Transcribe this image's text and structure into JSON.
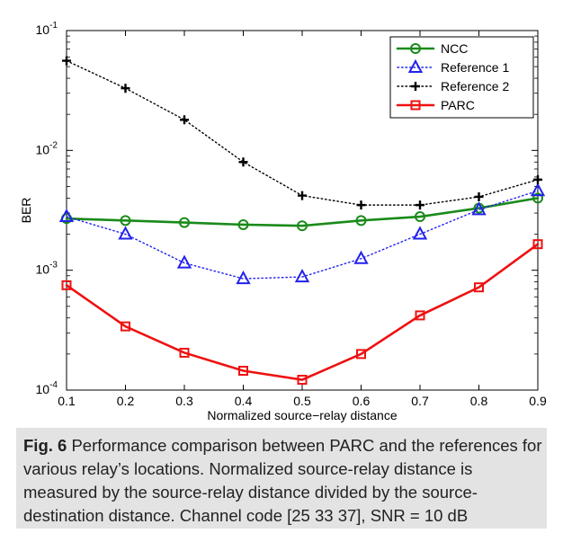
{
  "chart_data": {
    "type": "line",
    "ylabel": "BER",
    "xlabel": "Normalized source−relay distance",
    "x": [
      0.1,
      0.2,
      0.3,
      0.4,
      0.5,
      0.6,
      0.7,
      0.8,
      0.9
    ],
    "xlim": [
      0.1,
      0.9
    ],
    "ylim": [
      0.0001,
      0.1
    ],
    "yscale": "log",
    "x_tick_labels": [
      "0.1",
      "0.2",
      "0.3",
      "0.4",
      "0.5",
      "0.6",
      "0.7",
      "0.8",
      "0.9"
    ],
    "y_tick_labels": [
      {
        "base": "10",
        "exp": "-1"
      },
      {
        "base": "10",
        "exp": "-2"
      },
      {
        "base": "10",
        "exp": "-3"
      },
      {
        "base": "10",
        "exp": "-4"
      }
    ],
    "grid": false,
    "legend_position": "top-right",
    "series": [
      {
        "name": "NCC",
        "color": "#1a8a1a",
        "marker": "circle",
        "line_style": "solid",
        "values": [
          0.0027,
          0.0026,
          0.0025,
          0.0024,
          0.00235,
          0.0026,
          0.0028,
          0.0033,
          0.004
        ]
      },
      {
        "name": "Reference 1",
        "color": "#2222ee",
        "marker": "triangle",
        "line_style": "dotted",
        "values": [
          0.0028,
          0.002,
          0.00115,
          0.00085,
          0.00088,
          0.00125,
          0.002,
          0.0032,
          0.0046
        ]
      },
      {
        "name": "Reference 2",
        "color": "#000000",
        "marker": "plus",
        "line_style": "dotted",
        "values": [
          0.056,
          0.033,
          0.018,
          0.008,
          0.0042,
          0.0035,
          0.0035,
          0.0041,
          0.0057
        ]
      },
      {
        "name": "PARC",
        "color": "#ee1111",
        "marker": "square",
        "line_style": "solid",
        "values": [
          0.00075,
          0.00034,
          0.000205,
          0.000145,
          0.000122,
          0.0002,
          0.00042,
          0.00072,
          0.00165
        ]
      }
    ]
  },
  "caption": {
    "label": "Fig. 6",
    "text": "Performance comparison between PARC and the references for various relay’s locations. Normalized source-relay distance is measured by the source-relay distance divided by the source-destination distance. Channel code [25 33 37], SNR = 10 dB"
  }
}
